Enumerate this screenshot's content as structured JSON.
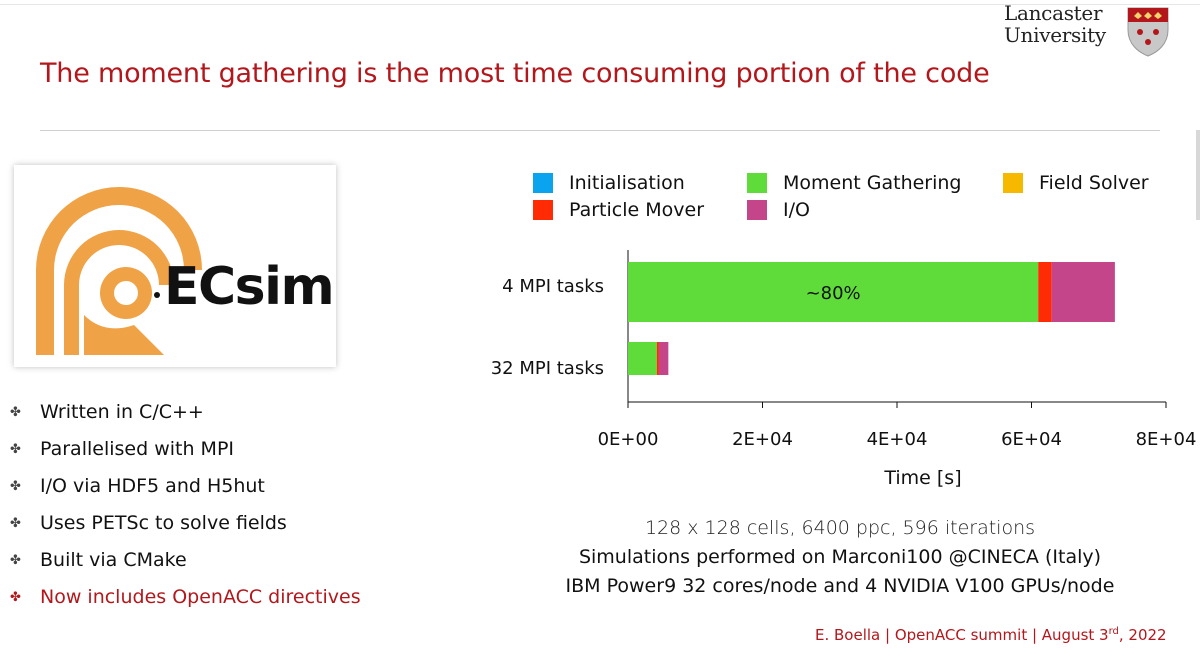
{
  "header": {
    "university_name": [
      "Lancaster",
      "University"
    ],
    "title": "The moment gathering is the most time consuming portion of the code"
  },
  "logo": {
    "name": "ECsim",
    "accent_color": "#f0a246"
  },
  "bullets": [
    {
      "text": "Written in C/C++",
      "highlight": false
    },
    {
      "text": "Parallelised with MPI",
      "highlight": false
    },
    {
      "text": "I/O via HDF5 and H5hut",
      "highlight": false
    },
    {
      "text": "Uses PETSc to solve fields",
      "highlight": false
    },
    {
      "text": "Built via CMake",
      "highlight": false
    },
    {
      "text": "Now includes OpenACC directives",
      "highlight": true
    }
  ],
  "chart_data": {
    "type": "bar",
    "orientation": "horizontal",
    "stacked": true,
    "categories": [
      "4 MPI tasks",
      "32 MPI tasks"
    ],
    "series": [
      {
        "name": "Initialisation",
        "color": "#0aa3f0",
        "values": [
          0,
          0
        ]
      },
      {
        "name": "Moment Gathering",
        "color": "#5fdb3a",
        "values": [
          61000,
          4300
        ]
      },
      {
        "name": "Field Solver",
        "color": "#f7b800",
        "values": [
          0,
          0
        ]
      },
      {
        "name": "Particle Mover",
        "color": "#ff2b05",
        "values": [
          2000,
          300
        ]
      },
      {
        "name": "I/O",
        "color": "#c5458a",
        "values": [
          9400,
          1400
        ]
      }
    ],
    "legend_order": [
      "Initialisation",
      "Moment Gathering",
      "Field Solver",
      "Particle Mover",
      "I/O"
    ],
    "legend_position": "top",
    "xlabel": "Time [s]",
    "ylabel": "",
    "xlim": [
      0,
      80000
    ],
    "xticks": [
      {
        "value": 0,
        "label": "0E+00"
      },
      {
        "value": 20000,
        "label": "2E+04"
      },
      {
        "value": 40000,
        "label": "4E+04"
      },
      {
        "value": 60000,
        "label": "6E+04"
      },
      {
        "value": 80000,
        "label": "8E+04"
      }
    ],
    "annotations": [
      {
        "category": "4 MPI tasks",
        "series": "Moment Gathering",
        "text": "~80%"
      }
    ]
  },
  "caption": {
    "line1": "128 x 128 cells, 6400 ppc, 596 iterations",
    "line2": "Simulations performed on Marconi100 @CINECA (Italy)",
    "line3": "IBM Power9 32 cores/node and 4 NVIDIA V100 GPUs/node"
  },
  "footer": {
    "text": "E. Boella | OpenACC summit | August 3",
    "sup": "rd",
    "year": ", 2022"
  }
}
